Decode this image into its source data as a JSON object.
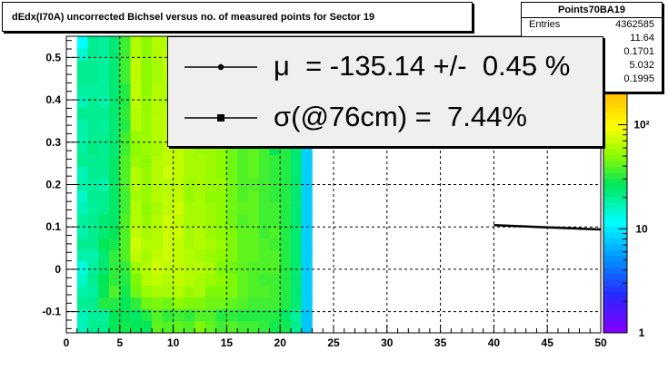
{
  "chart_data": {
    "type": "heatmap",
    "title": "dEdx(I70A) uncorrected Bichsel versus no. of measured points for Sector 19",
    "xlabel": "",
    "ylabel": "",
    "xlim": [
      0,
      50
    ],
    "ylim": [
      -0.15,
      0.55
    ],
    "x_ticks": [
      0,
      5,
      10,
      15,
      20,
      25,
      30,
      35,
      40,
      45,
      50
    ],
    "x_tick_labels": [
      "0",
      "5",
      "10",
      "15",
      "20",
      "25",
      "30",
      "35",
      "40",
      "45",
      "50"
    ],
    "y_ticks": [
      -0.1,
      0,
      0.1,
      0.2,
      0.3,
      0.4,
      0.5
    ],
    "y_tick_labels": [
      "-0.1",
      "0",
      "0.1",
      "0.2",
      "0.3",
      "0.4",
      "0.5"
    ],
    "z_scale": "log",
    "z_ticks": [
      1,
      10,
      100
    ],
    "z_tick_labels": [
      "1",
      "10",
      "10²"
    ],
    "grid": true,
    "x_bin_width": 1,
    "columns": [
      {
        "x": 1,
        "levels": [
          0.75,
          0.75,
          0.72,
          0.74,
          0.76,
          0.78,
          0.74,
          0.72,
          0.74,
          0.73,
          0.75,
          0.76,
          0.74,
          0.75,
          0.72,
          0.73,
          0.74,
          0.74,
          0.72,
          0.75,
          0.73,
          0.72,
          0.72,
          0.77,
          0.8
        ]
      },
      {
        "x": 2,
        "levels": [
          0.72,
          0.73,
          0.72,
          0.73,
          0.72,
          0.73,
          0.74,
          0.72,
          0.72,
          0.72,
          0.73,
          0.72,
          0.73,
          0.72,
          0.72,
          0.71,
          0.72,
          0.72,
          0.72,
          0.72,
          0.73,
          0.72,
          0.72,
          0.72,
          0.72
        ]
      },
      {
        "x": 3,
        "levels": [
          0.72,
          0.73,
          0.66,
          0.68,
          0.68,
          0.7,
          0.7,
          0.68,
          0.7,
          0.7,
          0.72,
          0.72,
          0.74,
          0.72,
          0.72,
          0.72,
          0.72,
          0.73,
          0.72,
          0.74,
          0.73,
          0.73,
          0.73,
          0.73,
          0.73
        ]
      },
      {
        "x": 4,
        "levels": [
          0.68,
          0.68,
          0.66,
          0.63,
          0.65,
          0.65,
          0.65,
          0.67,
          0.68,
          0.69,
          0.69,
          0.69,
          0.69,
          0.69,
          0.69,
          0.7,
          0.7,
          0.7,
          0.7,
          0.7,
          0.7,
          0.7,
          0.7,
          0.7,
          0.7
        ]
      },
      {
        "x": 5,
        "levels": [
          0.67,
          0.68,
          0.68,
          0.67,
          0.66,
          0.65,
          0.63,
          0.63,
          0.63,
          0.63,
          0.64,
          0.64,
          0.63,
          0.63,
          0.63,
          0.64,
          0.64,
          0.66,
          0.65,
          0.66,
          0.66,
          0.64,
          0.64,
          0.64,
          0.64
        ]
      },
      {
        "x": 6,
        "levels": [
          0.68,
          0.69,
          0.65,
          0.61,
          0.6,
          0.58,
          0.55,
          0.54,
          0.55,
          0.56,
          0.56,
          0.57,
          0.56,
          0.56,
          0.58,
          0.59,
          0.58,
          0.56,
          0.56,
          0.55,
          0.55,
          0.55,
          0.55,
          0.56,
          0.56
        ]
      },
      {
        "x": 7,
        "levels": [
          0.68,
          0.66,
          0.61,
          0.58,
          0.56,
          0.56,
          0.57,
          0.56,
          0.57,
          0.58,
          0.59,
          0.58,
          0.58,
          0.58,
          0.59,
          0.58,
          0.58,
          0.58,
          0.58,
          0.58,
          0.59,
          0.59,
          0.59,
          0.59,
          0.59
        ]
      },
      {
        "x": 8,
        "levels": [
          0.62,
          0.63,
          0.6,
          0.57,
          0.55,
          0.54,
          0.55,
          0.56,
          0.56,
          0.56,
          0.57,
          0.56,
          0.56,
          0.56,
          0.56,
          0.57,
          0.56,
          0.56,
          0.56,
          0.56,
          0.56,
          0.57,
          0.57,
          0.56,
          0.56
        ]
      },
      {
        "x": 9,
        "levels": [
          0.63,
          0.65,
          0.61,
          0.57,
          0.56,
          0.55,
          0.54,
          0.54,
          0.54,
          0.54,
          0.55,
          0.55,
          0.56,
          0.54,
          0.55,
          0.55,
          0.55,
          0.55,
          0.55,
          0.56,
          0.56,
          0.56,
          0.55,
          0.55,
          0.56
        ]
      },
      {
        "x": 10,
        "levels": [
          0.62,
          0.64,
          0.59,
          0.56,
          0.55,
          0.55,
          0.55,
          0.55,
          0.54,
          0.55,
          0.54,
          0.55,
          0.55,
          0.55,
          0.55,
          0.55,
          0.55,
          0.55,
          0.55,
          0.55,
          0.55,
          0.54,
          0.54,
          0.55,
          0.55
        ]
      },
      {
        "x": 11,
        "levels": [
          0.63,
          0.65,
          0.6,
          0.58,
          0.56,
          0.56,
          0.56,
          0.57,
          0.57,
          0.57,
          0.57,
          0.58,
          0.58,
          0.57,
          0.57,
          0.57,
          0.58,
          0.58,
          0.57,
          0.58,
          0.57,
          0.57,
          0.57,
          0.57,
          0.57
        ]
      },
      {
        "x": 12,
        "levels": [
          0.6,
          0.63,
          0.6,
          0.57,
          0.57,
          0.56,
          0.57,
          0.56,
          0.56,
          0.57,
          0.57,
          0.57,
          0.57,
          0.57,
          0.57,
          0.58,
          0.57,
          0.57,
          0.57,
          0.57,
          0.58,
          0.58,
          0.58,
          0.58,
          0.58
        ]
      },
      {
        "x": 13,
        "levels": [
          0.62,
          0.63,
          0.61,
          0.6,
          0.58,
          0.57,
          0.58,
          0.57,
          0.58,
          0.58,
          0.58,
          0.59,
          0.58,
          0.58,
          0.58,
          0.58,
          0.58,
          0.58,
          0.58,
          0.58,
          0.58,
          0.58,
          0.58,
          0.58,
          0.58
        ]
      },
      {
        "x": 14,
        "levels": [
          0.64,
          0.66,
          0.61,
          0.6,
          0.59,
          0.6,
          0.59,
          0.58,
          0.59,
          0.59,
          0.59,
          0.59,
          0.58,
          0.59,
          0.59,
          0.59,
          0.59,
          0.58,
          0.58,
          0.58,
          0.58,
          0.58,
          0.58,
          0.58,
          0.58
        ]
      },
      {
        "x": 15,
        "levels": [
          0.63,
          0.65,
          0.62,
          0.6,
          0.6,
          0.61,
          0.6,
          0.6,
          0.6,
          0.61,
          0.61,
          0.61,
          0.61,
          0.61,
          0.61,
          0.61,
          0.61,
          0.61,
          0.61,
          0.61,
          0.61,
          0.61,
          0.61,
          0.61,
          0.61
        ]
      },
      {
        "x": 16,
        "levels": [
          0.64,
          0.66,
          0.63,
          0.62,
          0.62,
          0.62,
          0.62,
          0.62,
          0.62,
          0.63,
          0.62,
          0.63,
          0.63,
          0.63,
          0.63,
          0.63,
          0.63,
          0.63,
          0.63,
          0.63,
          0.63,
          0.63,
          0.63,
          0.63,
          0.63
        ]
      },
      {
        "x": 17,
        "levels": [
          0.64,
          0.66,
          0.64,
          0.63,
          0.63,
          0.63,
          0.62,
          0.62,
          0.62,
          0.62,
          0.62,
          0.62,
          0.63,
          0.62,
          0.62,
          0.62,
          0.62,
          0.63,
          0.63,
          0.63,
          0.63,
          0.63,
          0.63,
          0.63,
          0.63
        ]
      },
      {
        "x": 18,
        "levels": [
          0.65,
          0.66,
          0.64,
          0.63,
          0.64,
          0.63,
          0.63,
          0.63,
          0.64,
          0.64,
          0.64,
          0.64,
          0.64,
          0.64,
          0.64,
          0.64,
          0.64,
          0.64,
          0.64,
          0.64,
          0.64,
          0.64,
          0.64,
          0.64,
          0.64
        ]
      },
      {
        "x": 19,
        "levels": [
          0.67,
          0.66,
          0.64,
          0.64,
          0.64,
          0.63,
          0.63,
          0.64,
          0.63,
          0.64,
          0.64,
          0.65,
          0.65,
          0.65,
          0.65,
          0.68,
          0.65,
          0.65,
          0.65,
          0.65,
          0.65,
          0.65,
          0.65,
          0.65,
          0.65
        ]
      },
      {
        "x": 20,
        "levels": [
          0.67,
          0.69,
          0.66,
          0.66,
          0.66,
          0.66,
          0.66,
          0.66,
          0.66,
          0.66,
          0.66,
          0.66,
          0.66,
          0.66,
          0.66,
          0.66,
          0.66,
          0.66,
          0.66,
          0.66,
          0.66,
          0.66,
          0.66,
          0.66,
          0.66
        ]
      },
      {
        "x": 21,
        "levels": [
          0.72,
          0.73,
          0.7,
          0.7,
          0.7,
          0.7,
          0.7,
          0.7,
          0.7,
          0.7,
          0.7,
          0.7,
          0.7,
          0.7,
          0.7,
          0.7,
          0.7,
          0.7,
          0.7,
          0.7,
          0.7,
          0.7,
          0.7,
          0.7,
          0.7
        ]
      },
      {
        "x": 22,
        "levels": [
          0.86,
          0.86,
          0.85,
          0.85,
          0.85,
          0.85,
          0.85,
          0.85,
          0.85,
          0.85,
          0.85,
          0.85,
          0.85,
          0.85,
          0.85,
          0.85,
          0.85,
          0.85,
          0.85,
          0.85,
          0.85,
          0.85,
          0.85,
          0.85,
          0.85
        ]
      }
    ],
    "y_bin_edges": [
      -0.15,
      -0.122,
      -0.094,
      -0.066,
      -0.038,
      -0.01,
      0.018,
      0.046,
      0.074,
      0.102,
      0.13,
      0.158,
      0.186,
      0.214,
      0.242,
      0.27,
      0.298,
      0.326,
      0.354,
      0.382,
      0.41,
      0.438,
      0.466,
      0.494,
      0.522,
      0.55
    ],
    "series": [
      {
        "x": [
          40.0,
          41.0,
          42.0,
          43.0,
          44.0,
          45.0,
          46.0,
          47.0,
          48.0,
          49.0,
          50.0
        ],
        "y": [
          0.104,
          0.103,
          0.102,
          0.101,
          0.1,
          0.099,
          0.098,
          0.097,
          0.096,
          0.095,
          0.094
        ]
      }
    ],
    "legend": {
      "entries": [
        {
          "marker": "dot",
          "text": "μ  = -135.14 +/-  0.45 %"
        },
        {
          "marker": "square",
          "text": "σ(@76cm) =  7.44%"
        }
      ]
    },
    "stats": {
      "name": "Points70BA19",
      "rows": [
        {
          "key": "Entries",
          "value": "4362585"
        },
        {
          "key": "",
          "value": "11.64"
        },
        {
          "key": "",
          "value": "0.1701"
        },
        {
          "key": "",
          "value": "5.032"
        },
        {
          "key": "",
          "value": "0.1995"
        }
      ]
    }
  }
}
